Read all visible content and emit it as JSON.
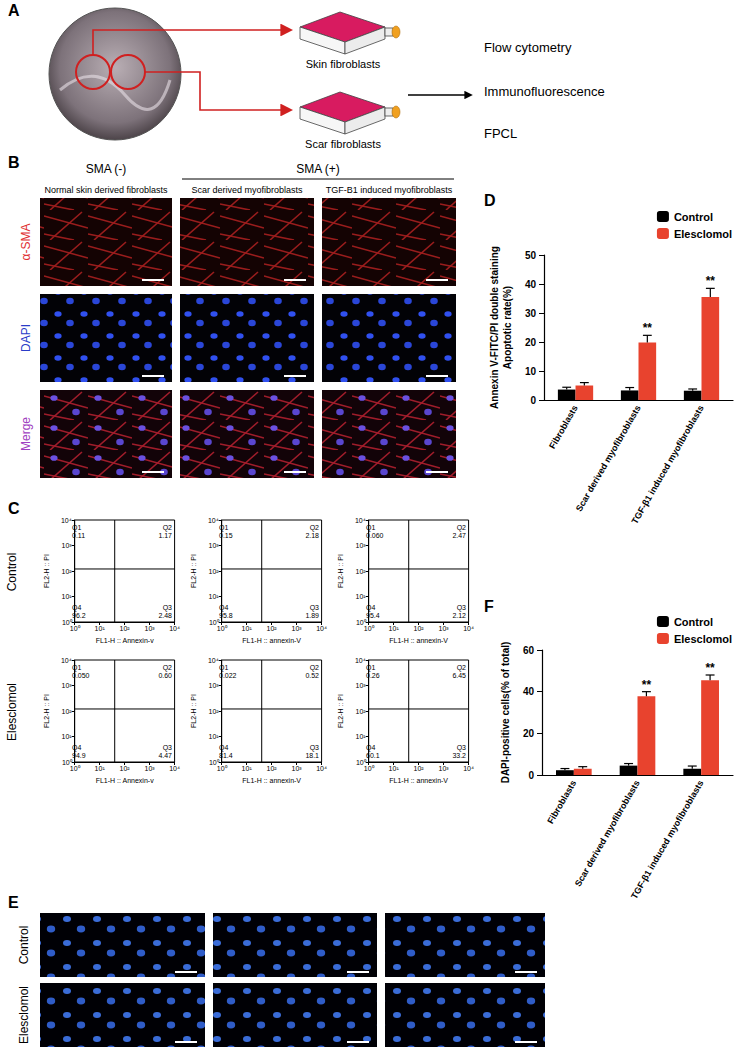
{
  "figure": {
    "panel_labels": [
      "A",
      "B",
      "C",
      "D",
      "E",
      "F"
    ],
    "A": {
      "targets": [
        "Skin fibroblasts",
        "Scar fibroblasts"
      ],
      "assays": [
        "Flow cytometry",
        "Immunofluorescence",
        "FPCL"
      ]
    },
    "B": {
      "groups": [
        {
          "text": "SMA (-)",
          "columns": [
            "Normal skin derived fibroblasts"
          ]
        },
        {
          "text": "SMA (+)",
          "columns": [
            "Scar derived myofibroblasts",
            "TGF-B1 induced myofibroblasts"
          ]
        }
      ],
      "rows": [
        {
          "text": "α-SMA",
          "color": "#e03030"
        },
        {
          "text": "DAPI",
          "color": "#2a3cc8"
        },
        {
          "text": "Merge",
          "color": "#a040c0"
        }
      ]
    },
    "C": {
      "rows": [
        "Control",
        "Elesclomol"
      ]
    },
    "E": {
      "rows": [
        "Control",
        "Elesclomol"
      ]
    }
  },
  "chart_data": [
    {
      "type": "quadrant",
      "x_label": "FL1-H :: Annexin-v",
      "y_label": "FL2-H :: PI",
      "log": true,
      "xlim": [
        1,
        10000
      ],
      "ylim": [
        1,
        10000
      ],
      "xticks": [
        {
          "value": 1,
          "label": "10⁰"
        },
        {
          "value": 10,
          "label": "10¹"
        },
        {
          "value": 100,
          "label": "10²"
        },
        {
          "value": 1000,
          "label": "10³"
        },
        {
          "value": 10000,
          "label": "10⁴"
        }
      ],
      "yticks": [
        {
          "value": 1,
          "label": "10⁰"
        },
        {
          "value": 10,
          "label": "10¹"
        },
        {
          "value": 100,
          "label": "10²"
        },
        {
          "value": 1000,
          "label": "10³"
        },
        {
          "value": 10000,
          "label": "10⁴"
        }
      ],
      "gate": [
        40,
        120
      ],
      "quadrants": [
        {
          "name": "Q1",
          "value": 0.11
        },
        {
          "name": "Q2",
          "value": 1.17
        },
        {
          "name": "Q3",
          "value": 2.48
        },
        {
          "name": "Q4",
          "value": 96.2
        }
      ]
    },
    {
      "type": "quadrant",
      "x_label": "FL1-H :: annexin-V",
      "y_label": "FL2-H :: PI",
      "log": true,
      "xlim": [
        1,
        10000
      ],
      "ylim": [
        1,
        10000
      ],
      "xticks": [
        {
          "value": 1,
          "label": "10⁰"
        },
        {
          "value": 10,
          "label": "10¹"
        },
        {
          "value": 100,
          "label": "10²"
        },
        {
          "value": 1000,
          "label": "10³"
        },
        {
          "value": 10000,
          "label": "10⁴"
        }
      ],
      "yticks": [
        {
          "value": 1,
          "label": "10⁰"
        },
        {
          "value": 10,
          "label": "10¹"
        },
        {
          "value": 100,
          "label": "10²"
        },
        {
          "value": 1000,
          "label": "10³"
        },
        {
          "value": 10000,
          "label": "10⁴"
        }
      ],
      "gate": [
        40,
        120
      ],
      "quadrants": [
        {
          "name": "Q1",
          "value": 0.15
        },
        {
          "name": "Q2",
          "value": 2.18
        },
        {
          "name": "Q3",
          "value": 1.89
        },
        {
          "name": "Q4",
          "value": 95.8
        }
      ]
    },
    {
      "type": "quadrant",
      "x_label": "FL1-H :: annexin-V",
      "y_label": "FL2-H :: PI",
      "log": true,
      "xlim": [
        1,
        10000
      ],
      "ylim": [
        1,
        10000
      ],
      "xticks": [
        {
          "value": 1,
          "label": "10⁰"
        },
        {
          "value": 10,
          "label": "10¹"
        },
        {
          "value": 100,
          "label": "10²"
        },
        {
          "value": 1000,
          "label": "10³"
        },
        {
          "value": 10000,
          "label": "10⁴"
        }
      ],
      "yticks": [
        {
          "value": 1,
          "label": "10⁰"
        },
        {
          "value": 10,
          "label": "10¹"
        },
        {
          "value": 100,
          "label": "10²"
        },
        {
          "value": 1000,
          "label": "10³"
        },
        {
          "value": 10000,
          "label": "10⁴"
        }
      ],
      "gate": [
        40,
        120
      ],
      "quadrants": [
        {
          "name": "Q1",
          "value": 0.06,
          "label": "0.060"
        },
        {
          "name": "Q2",
          "value": 2.47
        },
        {
          "name": "Q3",
          "value": 2.12
        },
        {
          "name": "Q4",
          "value": 95.4
        }
      ]
    },
    {
      "type": "quadrant",
      "x_label": "FL1-H :: Annexin-v",
      "y_label": "FL2-H :: PI",
      "log": true,
      "xlim": [
        1,
        10000
      ],
      "ylim": [
        1,
        10000
      ],
      "xticks": [
        {
          "value": 1,
          "label": "10⁰"
        },
        {
          "value": 10,
          "label": "10¹"
        },
        {
          "value": 100,
          "label": "10²"
        },
        {
          "value": 1000,
          "label": "10³"
        },
        {
          "value": 10000,
          "label": "10⁴"
        }
      ],
      "yticks": [
        {
          "value": 1,
          "label": "10⁰"
        },
        {
          "value": 10,
          "label": "10¹"
        },
        {
          "value": 100,
          "label": "10²"
        },
        {
          "value": 1000,
          "label": "10³"
        },
        {
          "value": 10000,
          "label": "10⁴"
        }
      ],
      "gate": [
        40,
        120
      ],
      "quadrants": [
        {
          "name": "Q1",
          "value": 0.05,
          "label": "0.050"
        },
        {
          "name": "Q2",
          "value": 0.6,
          "label": "0.60"
        },
        {
          "name": "Q3",
          "value": 4.47
        },
        {
          "name": "Q4",
          "value": 94.9
        }
      ]
    },
    {
      "type": "quadrant",
      "x_label": "FL1-H :: annexin-V",
      "y_label": "FL2-H :: PI",
      "log": true,
      "xlim": [
        1,
        10000
      ],
      "ylim": [
        1,
        10000
      ],
      "xticks": [
        {
          "value": 1,
          "label": "10⁰"
        },
        {
          "value": 10,
          "label": "10¹"
        },
        {
          "value": 100,
          "label": "10²"
        },
        {
          "value": 1000,
          "label": "10³"
        },
        {
          "value": 10000,
          "label": "10⁴"
        }
      ],
      "yticks": [
        {
          "value": 1,
          "label": "10⁰"
        },
        {
          "value": 10,
          "label": "10¹"
        },
        {
          "value": 100,
          "label": "10²"
        },
        {
          "value": 1000,
          "label": "10³"
        },
        {
          "value": 10000,
          "label": "10⁴"
        }
      ],
      "gate": [
        40,
        120
      ],
      "quadrants": [
        {
          "name": "Q1",
          "value": 0.022
        },
        {
          "name": "Q2",
          "value": 0.52
        },
        {
          "name": "Q3",
          "value": 18.1
        },
        {
          "name": "Q4",
          "value": 81.4
        }
      ]
    },
    {
      "type": "quadrant",
      "x_label": "FL1-H :: annexin-V",
      "y_label": "FL2-H :: PI",
      "log": true,
      "xlim": [
        1,
        10000
      ],
      "ylim": [
        1,
        10000
      ],
      "xticks": [
        {
          "value": 1,
          "label": "10⁰"
        },
        {
          "value": 10,
          "label": "10¹"
        },
        {
          "value": 100,
          "label": "10²"
        },
        {
          "value": 1000,
          "label": "10³"
        },
        {
          "value": 10000,
          "label": "10⁴"
        }
      ],
      "yticks": [
        {
          "value": 1,
          "label": "10⁰"
        },
        {
          "value": 10,
          "label": "10¹"
        },
        {
          "value": 100,
          "label": "10²"
        },
        {
          "value": 1000,
          "label": "10³"
        },
        {
          "value": 10000,
          "label": "10⁴"
        }
      ],
      "gate": [
        40,
        120
      ],
      "quadrants": [
        {
          "name": "Q1",
          "value": 0.26
        },
        {
          "name": "Q2",
          "value": 6.45
        },
        {
          "name": "Q3",
          "value": 33.2
        },
        {
          "name": "Q4",
          "value": 60.1
        }
      ]
    },
    {
      "type": "bar",
      "y_label": "Annexin V-FITC/PI double staining\nApoptotic rate(%)",
      "categories": [
        "Fibroblasts",
        "Scar derived myofibroblasts",
        "TGF-β1 induced myofibroblasts"
      ],
      "series": [
        {
          "name": "Control",
          "color": "#000000",
          "values": [
            3.6,
            3.3,
            3.2
          ],
          "errors": [
            0.8,
            1.0,
            0.6
          ]
        },
        {
          "name": "Elesclomol",
          "color": "#e8432e",
          "values": [
            5.0,
            19.8,
            35.5
          ],
          "errors": [
            1.0,
            2.5,
            3.0
          ],
          "significance": [
            null,
            "**",
            "**"
          ]
        }
      ],
      "ylim": [
        0,
        50
      ],
      "yticks": [
        0,
        10,
        20,
        30,
        40,
        50
      ],
      "legend": "upper right",
      "grid": false
    },
    {
      "type": "bar",
      "y_label": "DAPI-positive cells(% of total)",
      "categories": [
        "Fibroblasts",
        "Scar derived myofibroblasts",
        "TGF-β1 induced myofibroblasts"
      ],
      "series": [
        {
          "name": "Control",
          "color": "#000000",
          "values": [
            2.3,
            4.5,
            3.0
          ],
          "errors": [
            0.8,
            1.0,
            1.3
          ]
        },
        {
          "name": "Elesclomol",
          "color": "#e8432e",
          "values": [
            3.0,
            37.8,
            45.5
          ],
          "errors": [
            1.0,
            2.2,
            2.5
          ],
          "significance": [
            null,
            "**",
            "**"
          ]
        }
      ],
      "ylim": [
        0,
        60
      ],
      "yticks": [
        0,
        20,
        40,
        60
      ],
      "legend": "upper right",
      "grid": false
    }
  ]
}
